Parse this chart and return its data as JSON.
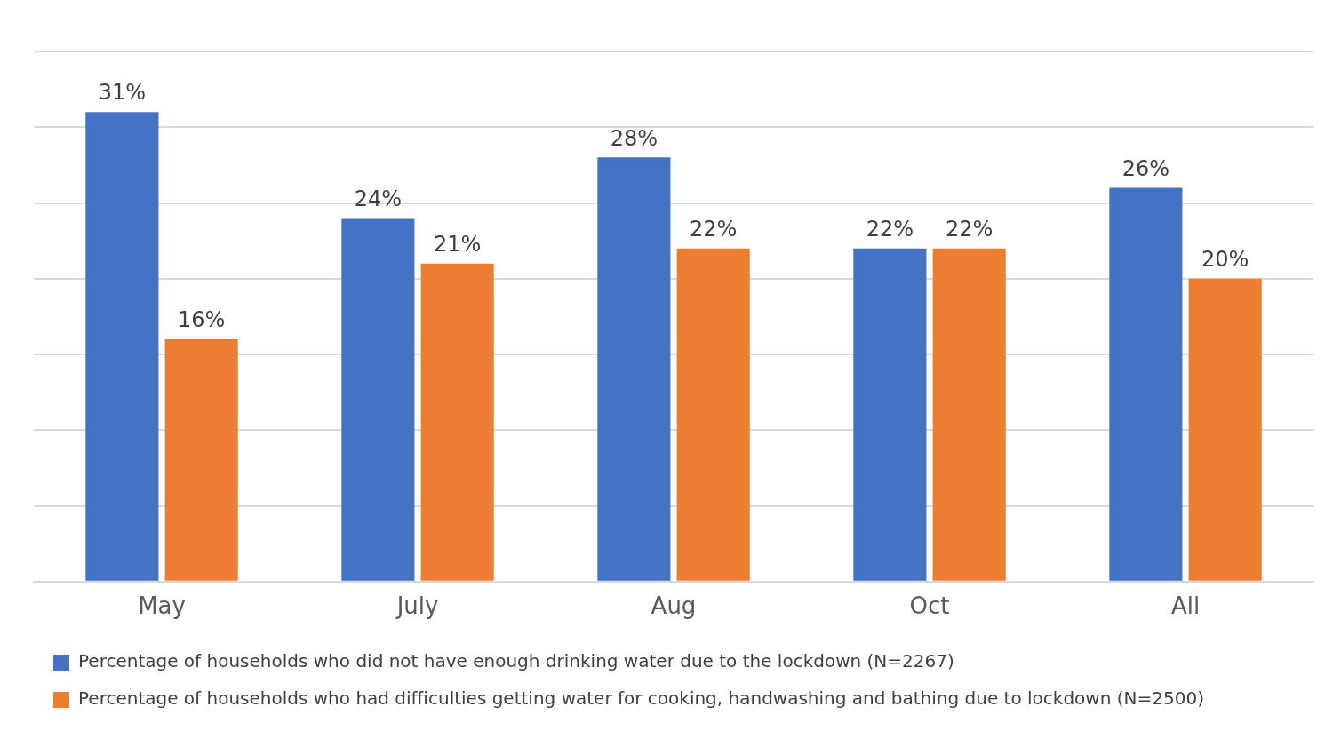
{
  "chart_data": {
    "type": "bar",
    "categories": [
      "May",
      "July",
      "Aug",
      "Oct",
      "All"
    ],
    "series": [
      {
        "name": "Percentage of households who did not have enough drinking water due to the lockdown (N=2267)",
        "color": "#4472c4",
        "values": [
          31,
          24,
          28,
          22,
          26
        ],
        "value_labels": [
          "31%",
          "24%",
          "28%",
          "22%",
          "26%"
        ]
      },
      {
        "name": "Percentage of households who had difficulties getting water for cooking, handwashing and bathing due to lockdown (N=2500)",
        "color": "#ed7d31",
        "values": [
          16,
          21,
          22,
          22,
          20
        ],
        "value_labels": [
          "16%",
          "21%",
          "22%",
          "22%",
          "20%"
        ]
      }
    ],
    "ylim": [
      0,
      35
    ],
    "yticks": [
      {
        "value": 0,
        "label": null
      },
      {
        "value": 5,
        "label": null
      },
      {
        "value": 10,
        "label": null
      },
      {
        "value": 15,
        "label": null
      },
      {
        "value": 20,
        "label": null
      },
      {
        "value": 25,
        "label": null
      },
      {
        "value": 30,
        "label": null
      },
      {
        "value": 35,
        "label": null
      }
    ],
    "tick_labels": "x",
    "grid": "y",
    "legend": "bottom"
  }
}
